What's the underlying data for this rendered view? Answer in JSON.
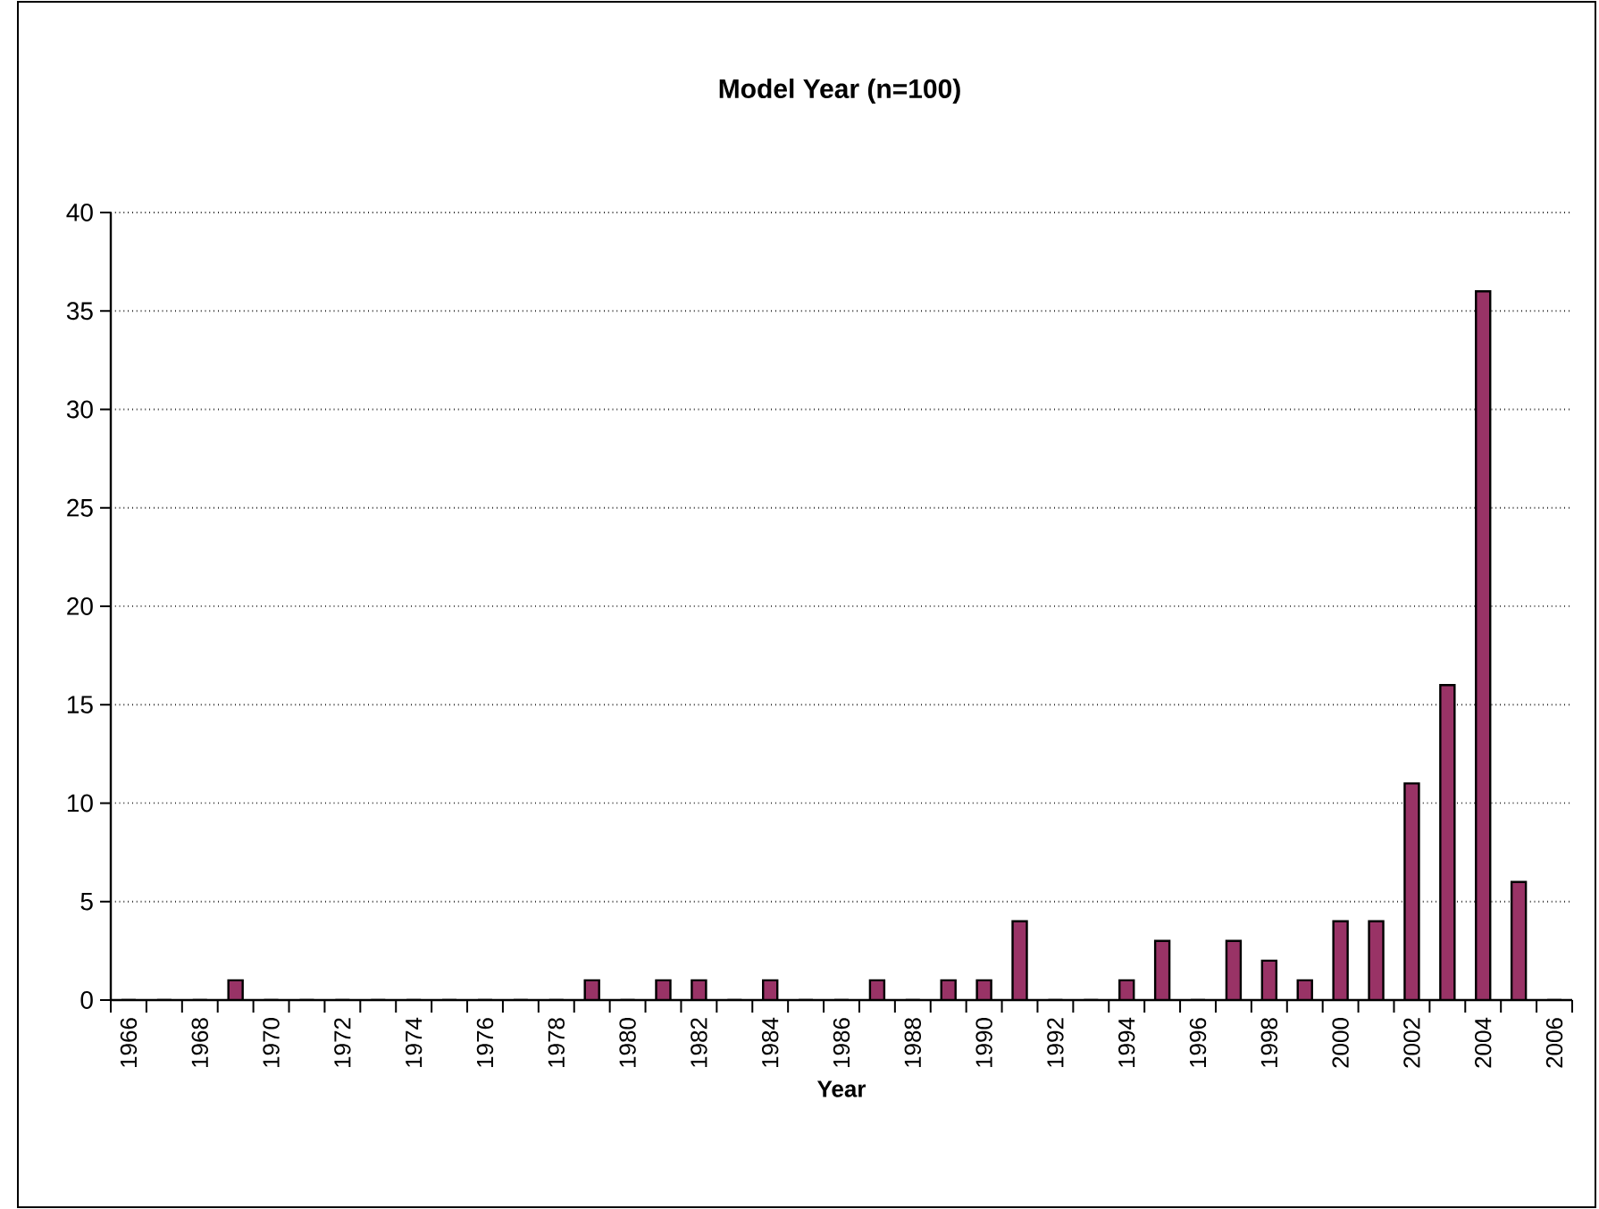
{
  "chart_data": {
    "type": "bar",
    "title": "Model Year (n=100)",
    "xlabel": "Year",
    "categories": [
      "1966",
      null,
      "1968",
      null,
      "1970",
      null,
      "1972",
      null,
      "1974",
      null,
      "1976",
      null,
      "1978",
      null,
      "1980",
      null,
      "1982",
      null,
      "1984",
      null,
      "1986",
      null,
      "1988",
      null,
      "1990",
      null,
      "1992",
      null,
      "1994",
      null,
      "1996",
      null,
      "1998",
      null,
      "2000",
      null,
      "2002",
      null,
      "2004",
      null,
      "2006"
    ],
    "values": [
      0,
      0,
      0,
      1,
      0,
      0,
      0,
      0,
      0,
      0,
      0,
      0,
      0,
      1,
      0,
      1,
      1,
      0,
      1,
      0,
      0,
      1,
      0,
      1,
      1,
      4,
      0,
      0,
      1,
      3,
      0,
      3,
      2,
      1,
      4,
      4,
      11,
      16,
      36,
      6,
      0
    ],
    "color": "#993366",
    "ylim": [
      0,
      40
    ],
    "yticks": [
      0,
      5,
      10,
      15,
      20,
      25,
      30,
      35,
      40
    ],
    "grid": "y"
  }
}
